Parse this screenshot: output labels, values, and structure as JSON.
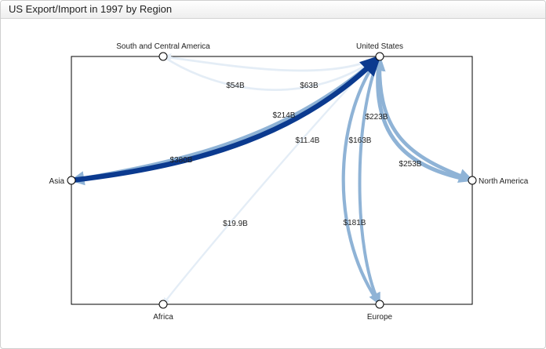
{
  "panel": {
    "title": "US Export/Import in 1997 by Region"
  },
  "diagram": {
    "type": "flow-graph",
    "nodes": [
      {
        "id": "us",
        "label": "United States"
      },
      {
        "id": "sca",
        "label": "South and Central America"
      },
      {
        "id": "asia",
        "label": "Asia"
      },
      {
        "id": "na",
        "label": "North America"
      },
      {
        "id": "africa",
        "label": "Africa"
      },
      {
        "id": "europe",
        "label": "Europe"
      }
    ],
    "edges": [
      {
        "from": "sca",
        "to": "us",
        "label": "$54B",
        "value": 54
      },
      {
        "from": "us",
        "to": "sca",
        "label": "$63B",
        "value": 63
      },
      {
        "from": "us",
        "to": "asia",
        "label": "$214B",
        "value": 214
      },
      {
        "from": "asia",
        "to": "us",
        "label": "$380B",
        "value": 380
      },
      {
        "from": "africa",
        "to": "us",
        "label": "$11.4B",
        "value": 11.4
      },
      {
        "from": "us",
        "to": "africa",
        "label": "$19.9B",
        "value": 19.9
      },
      {
        "from": "us",
        "to": "na",
        "label": "$223B",
        "value": 223
      },
      {
        "from": "na",
        "to": "us",
        "label": "$253B",
        "value": 253
      },
      {
        "from": "us",
        "to": "europe",
        "label": "$163B",
        "value": 163
      },
      {
        "from": "europe",
        "to": "us",
        "label": "$181B",
        "value": 181
      }
    ],
    "colors": {
      "light": "#e4edf6",
      "medium": "#8fb3d6",
      "dark": "#0b3a8f",
      "frame": "#000000"
    }
  }
}
